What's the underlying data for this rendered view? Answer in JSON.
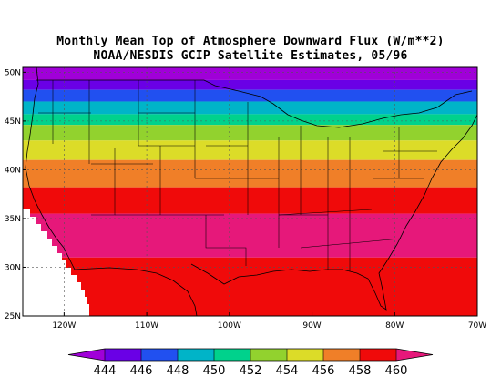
{
  "title_line1": "Monthly Mean Top of Atmosphere Downward Flux (W/m**2)",
  "title_line2": "NOAA/NESDIS GCIP Satellite Estimates, 05/96",
  "map": {
    "lon_range": [
      -125,
      -70
    ],
    "lat_range": [
      25,
      50.5
    ],
    "lat_ticks": [
      {
        "value": 50,
        "label": "50N"
      },
      {
        "value": 45,
        "label": "45N"
      },
      {
        "value": 40,
        "label": "40N"
      },
      {
        "value": 35,
        "label": "35N"
      },
      {
        "value": 30,
        "label": "30N"
      },
      {
        "value": 25,
        "label": "25N"
      }
    ],
    "lon_ticks": [
      {
        "value": -120,
        "label": "120W"
      },
      {
        "value": -110,
        "label": "110W"
      },
      {
        "value": -100,
        "label": "100W"
      },
      {
        "value": -90,
        "label": "90W"
      },
      {
        "value": -80,
        "label": "80W"
      },
      {
        "value": -70,
        "label": "70W"
      }
    ],
    "bands": [
      {
        "lat_from": 50.5,
        "lat_to": 49.2,
        "color": "#a000d8"
      },
      {
        "lat_from": 49.2,
        "lat_to": 48.2,
        "color": "#6a00e6"
      },
      {
        "lat_from": 48.2,
        "lat_to": 47.0,
        "color": "#2150f0"
      },
      {
        "lat_from": 47.0,
        "lat_to": 45.7,
        "color": "#00b4c8"
      },
      {
        "lat_from": 45.7,
        "lat_to": 44.6,
        "color": "#00d28c"
      },
      {
        "lat_from": 44.6,
        "lat_to": 43.0,
        "color": "#92d22e"
      },
      {
        "lat_from": 43.0,
        "lat_to": 41.0,
        "color": "#dcdc28"
      },
      {
        "lat_from": 41.0,
        "lat_to": 38.2,
        "color": "#f07f28"
      },
      {
        "lat_from": 38.2,
        "lat_to": 35.5,
        "color": "#f00a0a"
      },
      {
        "lat_from": 35.5,
        "lat_to": 31.0,
        "color": "#e6187a"
      },
      {
        "lat_from": 31.0,
        "lat_to": 25.0,
        "color": "#f00a0a"
      }
    ]
  },
  "colorbar": {
    "colors": [
      "#a000d8",
      "#6a00e6",
      "#2150f0",
      "#00b4c8",
      "#00d28c",
      "#92d22e",
      "#dcdc28",
      "#f07f28",
      "#f00a0a",
      "#e6187a"
    ],
    "labels": [
      "444",
      "446",
      "448",
      "450",
      "452",
      "454",
      "456",
      "458",
      "460"
    ]
  }
}
